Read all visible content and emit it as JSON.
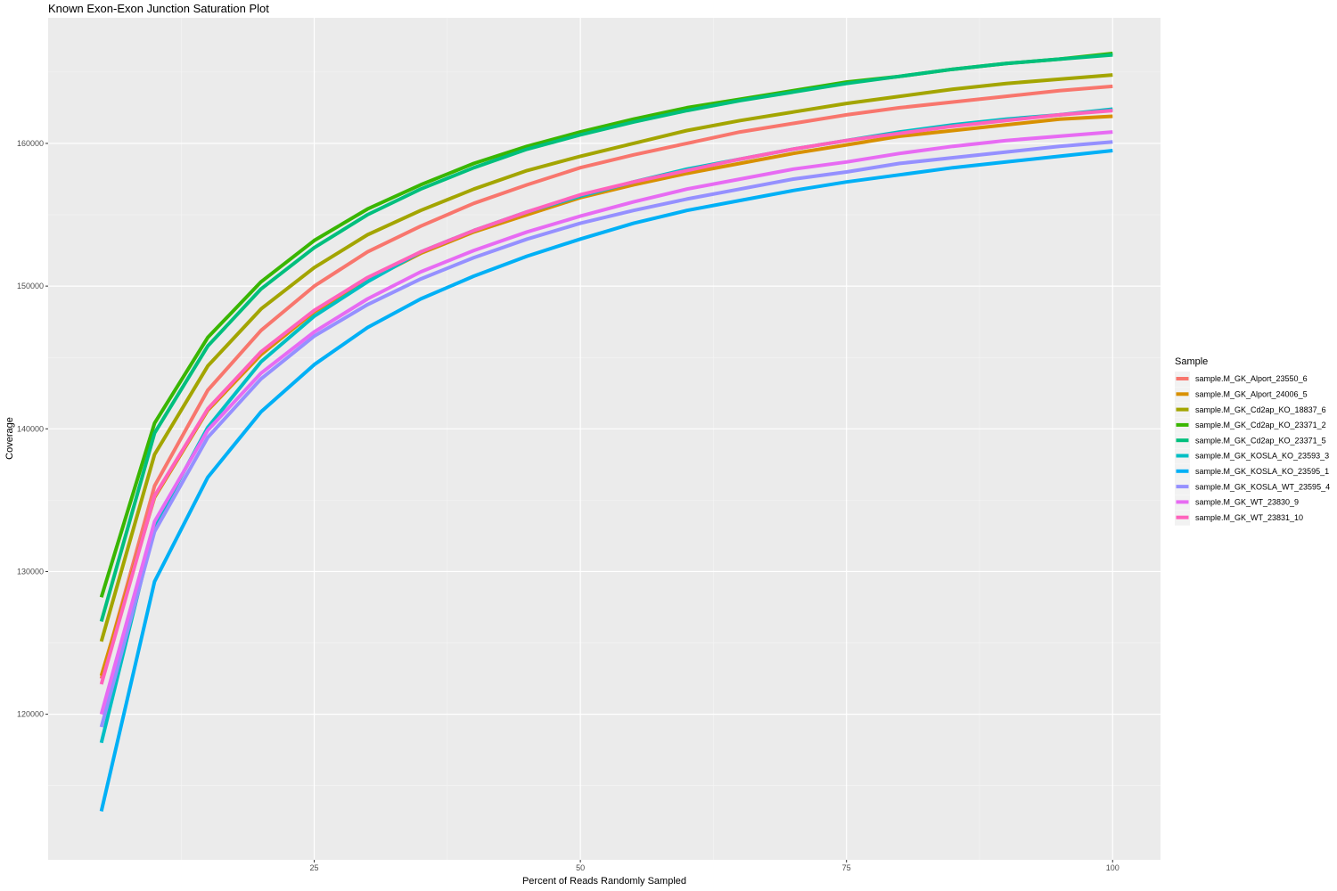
{
  "chart_data": {
    "type": "line",
    "title": "Known Exon-Exon Junction Saturation Plot",
    "xlabel": "Percent of Reads Randomly Sampled",
    "ylabel": "Coverage",
    "xlim": [
      0,
      104.5
    ],
    "ylim": [
      109800,
      168800
    ],
    "x_ticks": [
      25,
      50,
      75,
      100
    ],
    "y_ticks": [
      120000,
      130000,
      140000,
      150000,
      160000
    ],
    "grid": true,
    "legend_title": "Sample",
    "legend_position": "right",
    "x": [
      5,
      10,
      15,
      20,
      25,
      30,
      35,
      40,
      45,
      50,
      55,
      60,
      65,
      70,
      75,
      80,
      85,
      90,
      95,
      100
    ],
    "series": [
      {
        "name": "sample.M_GK_Alport_23550_6",
        "color": "#F8766D",
        "values": [
          122500,
          136000,
          142700,
          146900,
          150000,
          152400,
          154200,
          155800,
          157100,
          158300,
          159200,
          160000,
          160800,
          161400,
          162000,
          162500,
          162900,
          163300,
          163700,
          164000
        ]
      },
      {
        "name": "sample.M_GK_Alport_24006_5",
        "color": "#D89000",
        "values": [
          122700,
          135200,
          141300,
          145200,
          148200,
          150400,
          152300,
          153800,
          155000,
          156200,
          157100,
          157900,
          158600,
          159300,
          159900,
          160500,
          160900,
          161300,
          161700,
          161900
        ]
      },
      {
        "name": "sample.M_GK_Cd2ap_KO_18837_6",
        "color": "#A3A500",
        "values": [
          125100,
          138200,
          144400,
          148400,
          151300,
          153600,
          155300,
          156800,
          158100,
          159100,
          160000,
          160900,
          161600,
          162200,
          162800,
          163300,
          163800,
          164200,
          164500,
          164800
        ]
      },
      {
        "name": "sample.M_GK_Cd2ap_KO_23371_2",
        "color": "#39B600",
        "values": [
          128200,
          140400,
          146400,
          150300,
          153200,
          155400,
          157100,
          158600,
          159800,
          160800,
          161700,
          162500,
          163100,
          163700,
          164300,
          164700,
          165200,
          165600,
          165900,
          166300
        ]
      },
      {
        "name": "sample.M_GK_Cd2ap_KO_23371_5",
        "color": "#00BF7D",
        "values": [
          126500,
          139700,
          145800,
          149800,
          152700,
          155000,
          156800,
          158300,
          159600,
          160600,
          161500,
          162300,
          163000,
          163600,
          164200,
          164700,
          165200,
          165600,
          165900,
          166200
        ]
      },
      {
        "name": "sample.M_GK_KOSLA_KO_23593_3",
        "color": "#00BFC4",
        "values": [
          118000,
          133200,
          140100,
          144700,
          147900,
          150300,
          152400,
          153900,
          155200,
          156300,
          157300,
          158200,
          158900,
          159600,
          160200,
          160800,
          161300,
          161700,
          162000,
          162400
        ]
      },
      {
        "name": "sample.M_GK_KOSLA_KO_23595_1",
        "color": "#00B0F6",
        "values": [
          113200,
          129300,
          136600,
          141200,
          144500,
          147100,
          149100,
          150700,
          152100,
          153300,
          154400,
          155300,
          156000,
          156700,
          157300,
          157800,
          158300,
          158700,
          159100,
          159500
        ]
      },
      {
        "name": "sample.M_GK_KOSLA_WT_23595_4",
        "color": "#9590FF",
        "values": [
          119100,
          132800,
          139400,
          143500,
          146500,
          148700,
          150500,
          152000,
          153300,
          154400,
          155300,
          156100,
          156800,
          157500,
          158000,
          158600,
          159000,
          159400,
          159800,
          160100
        ]
      },
      {
        "name": "sample.M_GK_WT_23830_9",
        "color": "#E76BF3",
        "values": [
          120000,
          133500,
          139900,
          143900,
          146800,
          149100,
          151000,
          152500,
          153800,
          154900,
          155900,
          156800,
          157500,
          158200,
          158700,
          159300,
          159800,
          160200,
          160500,
          160800
        ]
      },
      {
        "name": "sample.M_GK_WT_23831_10",
        "color": "#FF62BC",
        "values": [
          122100,
          135300,
          141400,
          145400,
          148300,
          150600,
          152400,
          153900,
          155200,
          156400,
          157300,
          158100,
          158900,
          159600,
          160200,
          160700,
          161200,
          161600,
          162000,
          162300
        ]
      }
    ]
  }
}
